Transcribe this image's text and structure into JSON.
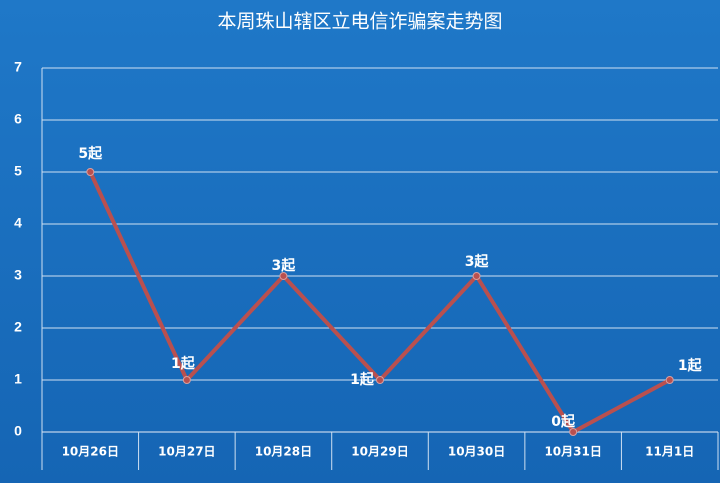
{
  "chart_data": {
    "type": "line",
    "title": "本周珠山辖区立电信诈骗案走势图",
    "categories": [
      "10月26日",
      "10月27日",
      "10月28日",
      "10月29日",
      "10月30日",
      "10月31日",
      "11月1日"
    ],
    "values": [
      5,
      1,
      3,
      1,
      3,
      0,
      1
    ],
    "value_labels": [
      "5起",
      "1起",
      "3起",
      "1起",
      "3起",
      "0起",
      "1起"
    ],
    "color": "#b9504f",
    "ylim": [
      0,
      7
    ],
    "yticks": [
      0,
      1,
      2,
      3,
      4,
      5,
      6,
      7
    ],
    "grid": true
  }
}
